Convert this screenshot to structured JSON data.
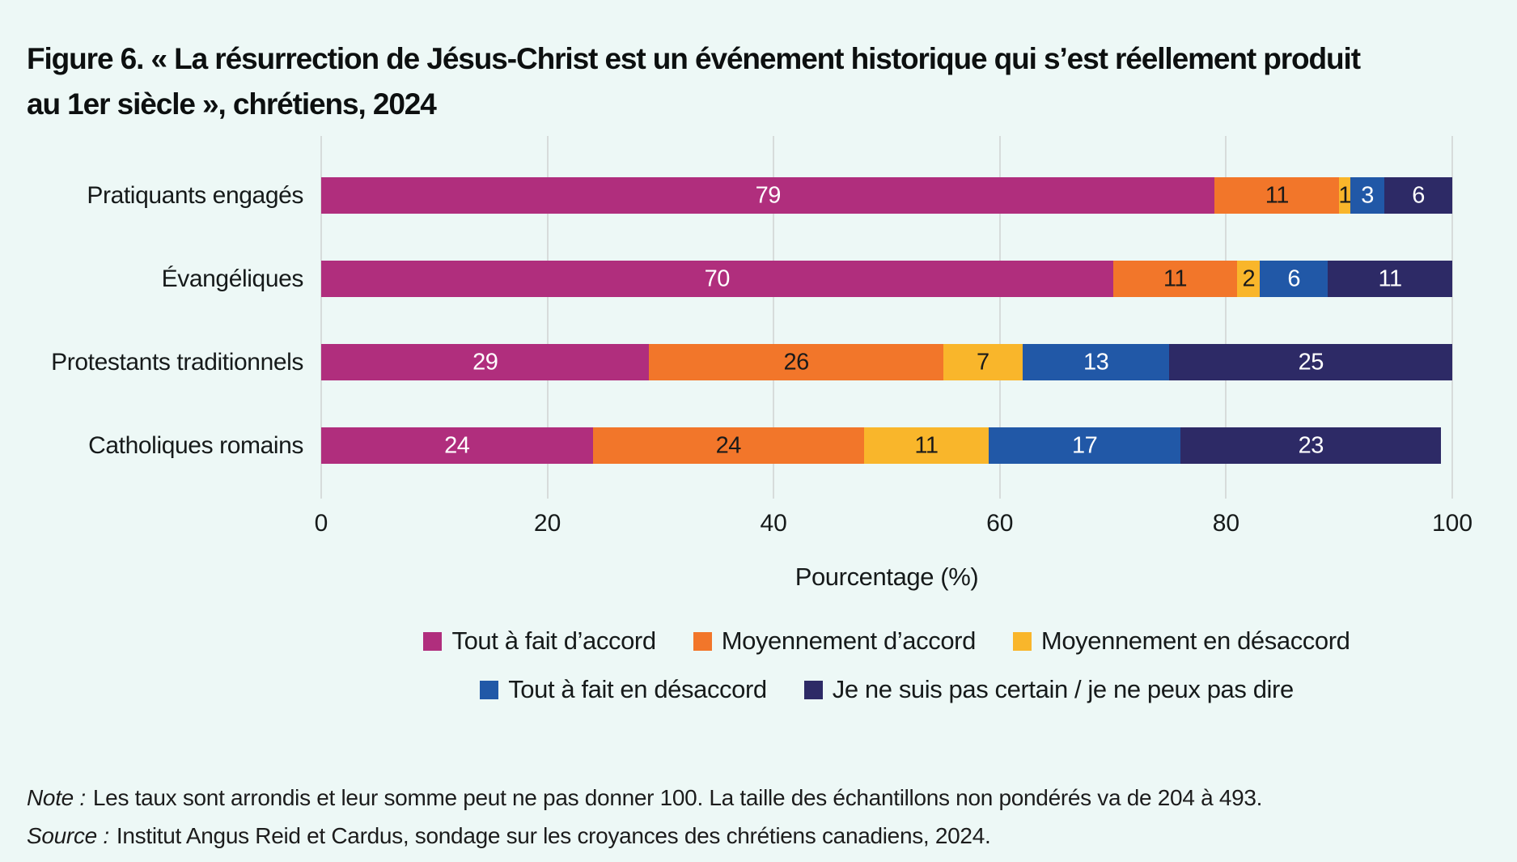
{
  "page": {
    "background": "#edf8f6"
  },
  "title": {
    "line1": "Figure 6. « La résurrection de Jésus-Christ est un événement historique qui s’est réellement produit",
    "line2": "au 1er siècle », chrétiens, 2024"
  },
  "chart_data": {
    "type": "bar",
    "orientation": "horizontal-stacked",
    "title": "Figure 6. « La résurrection de Jésus-Christ est un événement historique qui s’est réellement produit au 1er siècle », chrétiens, 2024",
    "categories": [
      "Pratiquants engagés",
      "Évangéliques",
      "Protestants traditionnels",
      "Catholiques romains"
    ],
    "series": [
      {
        "name": "Tout à fait d’accord",
        "color": "#b02e7d",
        "label_color": "#ffffff",
        "values": [
          79,
          70,
          29,
          24
        ]
      },
      {
        "name": "Moyennement d’accord",
        "color": "#f2762a",
        "label_color": "#1a1a1a",
        "values": [
          11,
          11,
          26,
          24
        ]
      },
      {
        "name": "Moyennement en désaccord",
        "color": "#f9b62b",
        "label_color": "#1a1a1a",
        "values": [
          1,
          2,
          7,
          11
        ]
      },
      {
        "name": "Tout à fait en désaccord",
        "color": "#2158a7",
        "label_color": "#ffffff",
        "values": [
          3,
          6,
          13,
          17
        ]
      },
      {
        "name": "Je ne suis pas certain / je ne peux pas dire",
        "color": "#2d2a66",
        "label_color": "#ffffff",
        "values": [
          6,
          11,
          25,
          23
        ]
      }
    ],
    "xlabel": "Pourcentage (%)",
    "xlim": [
      0,
      100
    ],
    "ticks": [
      "0",
      "20",
      "40",
      "60",
      "80",
      "100"
    ],
    "grid": "vertical",
    "gridline_color": "#d7dcdb",
    "legend_position": "bottom",
    "legend_rows": [
      [
        0,
        1,
        2
      ],
      [
        3,
        4
      ]
    ]
  },
  "note": {
    "label": "Note :",
    "text": "Les taux sont arrondis et leur somme peut ne pas donner 100. La taille des échantillons non pondérés va de 204 à 493."
  },
  "source": {
    "label": "Source :",
    "text": "Institut Angus Reid et Cardus, sondage sur les croyances des chrétiens canadiens, 2024."
  }
}
